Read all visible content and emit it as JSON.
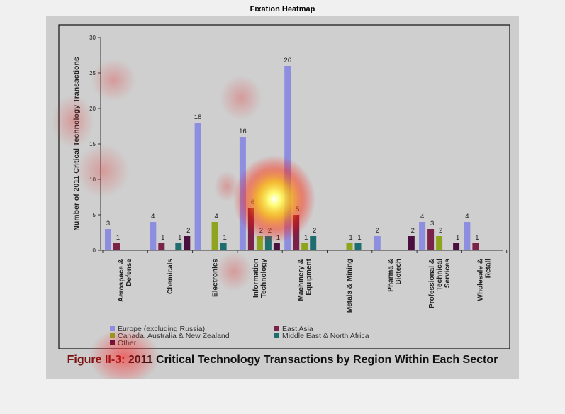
{
  "window_title": "Fixation Heatmap",
  "caption": {
    "figure_label": "Figure II-3:",
    "text": "2011 Critical Technology Transactions by Region Within Each Sector"
  },
  "colors": {
    "Europe (excluding Russia)": "#8e8ee0",
    "East Asia": "#7a2248",
    "Canada, Australia & New Zealand": "#8ea41c",
    "Middle East & North Africa": "#1e6e70",
    "Other": "#4a0f3e"
  },
  "chart_data": {
    "type": "bar",
    "title": "",
    "ylabel": "Number of 2011 Critical Technology Transactions",
    "xlabel": "",
    "ylim": [
      0,
      30
    ],
    "yticks": [
      0,
      5,
      10,
      15,
      20,
      25,
      30
    ],
    "grid": false,
    "legend_position": "bottom",
    "categories": [
      "Aerospace & Defense",
      "Chemicals",
      "Electronics",
      "Information Technology",
      "Machinery & Equipment",
      "Metals & Mining",
      "Pharma & Biotech",
      "Professional & Technical Services",
      "Wholesale & Retail"
    ],
    "series": [
      {
        "name": "Europe (excluding Russia)",
        "values": [
          3,
          4,
          18,
          16,
          26,
          null,
          2,
          4,
          4
        ]
      },
      {
        "name": "East Asia",
        "values": [
          1,
          1,
          null,
          6,
          5,
          null,
          null,
          3,
          1
        ]
      },
      {
        "name": "Canada, Australia & New Zealand",
        "values": [
          null,
          null,
          4,
          2,
          1,
          1,
          null,
          2,
          null
        ]
      },
      {
        "name": "Middle East & North Africa",
        "values": [
          null,
          1,
          1,
          2,
          2,
          1,
          null,
          null,
          null
        ]
      },
      {
        "name": "Other",
        "values": [
          null,
          2,
          null,
          1,
          null,
          null,
          2,
          1,
          null
        ]
      }
    ]
  },
  "category_label_lines": [
    [
      "Aerospace &",
      "Defense"
    ],
    [
      "Chemicals"
    ],
    [
      "Electronics"
    ],
    [
      "Information",
      "Technology"
    ],
    [
      "Machinery &",
      "Equipment"
    ],
    [
      "Metals & Mining"
    ],
    [
      "Pharma &",
      "Biotech"
    ],
    [
      "Professional &",
      "Technical",
      "Services"
    ],
    [
      "Wholesale &",
      "Retail"
    ]
  ]
}
